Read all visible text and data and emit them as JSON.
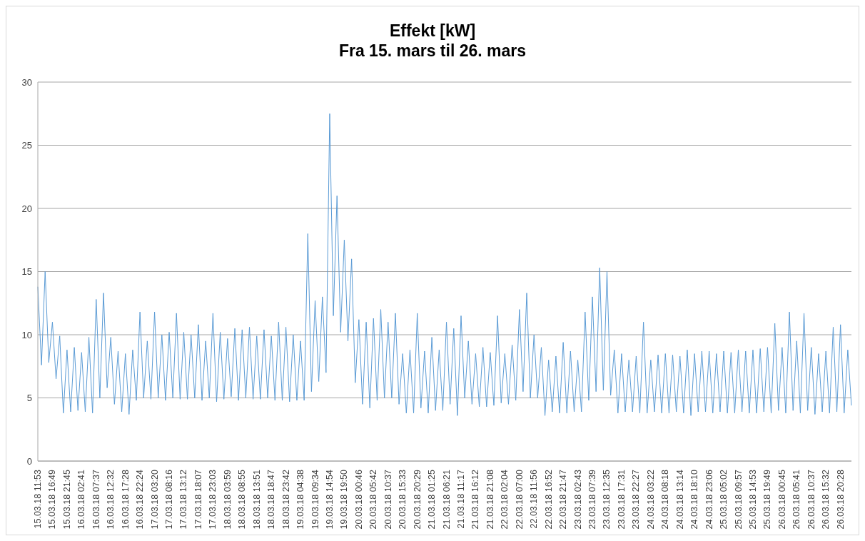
{
  "chart_data": {
    "type": "line",
    "title": "Effekt [kW]",
    "subtitle": "Fra 15. mars til 26. mars",
    "categories": [
      "15.03.18 11:53",
      null,
      null,
      null,
      "15.03.18 16:49",
      null,
      null,
      null,
      "15.03.18 21:45",
      null,
      null,
      null,
      "16.03.18 02:41",
      null,
      null,
      null,
      "16.03.18 07:37",
      null,
      null,
      null,
      "16.03.18 12:32",
      null,
      null,
      null,
      "16.03.18 17:28",
      null,
      null,
      null,
      "16.03.18 22:24",
      null,
      null,
      null,
      "17.03.18 03:20",
      null,
      null,
      null,
      "17.03.18 08:16",
      null,
      null,
      null,
      "17.03.18 13:12",
      null,
      null,
      null,
      "17.03.18 18:07",
      null,
      null,
      null,
      "17.03.18 23:03",
      null,
      null,
      null,
      "18.03.18 03:59",
      null,
      null,
      null,
      "18.03.18 08:55",
      null,
      null,
      null,
      "18.03.18 13:51",
      null,
      null,
      null,
      "18.03.18 18:47",
      null,
      null,
      null,
      "18.03.18 23:42",
      null,
      null,
      null,
      "19.03.18 04:38",
      null,
      null,
      null,
      "19.03.18 09:34",
      null,
      null,
      null,
      "19.03.18 14:54",
      null,
      null,
      null,
      "19.03.18 19:50",
      null,
      null,
      null,
      "20.03.18 00:46",
      null,
      null,
      null,
      "20.03.18 05:42",
      null,
      null,
      null,
      "20.03.18 10:37",
      null,
      null,
      null,
      "20.03.18 15:33",
      null,
      null,
      null,
      "20.03.18 20:29",
      null,
      null,
      null,
      "21.03.18 01:25",
      null,
      null,
      null,
      "21.03.18 06:21",
      null,
      null,
      null,
      "21.03.18 11:17",
      null,
      null,
      null,
      "21.03.18 16:12",
      null,
      null,
      null,
      "21.03.18 21:08",
      null,
      null,
      null,
      "22.03.18 02:04",
      null,
      null,
      null,
      "22.03.18 07:00",
      null,
      null,
      null,
      "22.03.18 11:56",
      null,
      null,
      null,
      "22.03.18 16:52",
      null,
      null,
      null,
      "22.03.18 21:47",
      null,
      null,
      null,
      "23.03.18 02:43",
      null,
      null,
      null,
      "23.03.18 07:39",
      null,
      null,
      null,
      "23.03.18 12:35",
      null,
      null,
      null,
      "23.03.18 17:31",
      null,
      null,
      null,
      "23.03.18 22:27",
      null,
      null,
      null,
      "24.03.18 03:22",
      null,
      null,
      null,
      "24.03.18 08:18",
      null,
      null,
      null,
      "24.03.18 13:14",
      null,
      null,
      null,
      "24.03.18 18:10",
      null,
      null,
      null,
      "24.03.18 23:06",
      null,
      null,
      null,
      "25.03.18 05:02",
      null,
      null,
      null,
      "25.03.18 09:57",
      null,
      null,
      null,
      "25.03.18 14:53",
      null,
      null,
      null,
      "25.03.18 19:49",
      null,
      null,
      null,
      "26.03.18 00:45",
      null,
      null,
      null,
      "26.03.18 05:41",
      null,
      null,
      null,
      "26.03.18 10:37",
      null,
      null,
      null,
      "26.03.18 15:32",
      null,
      null,
      null,
      "26.03.18 20:28",
      null,
      null,
      null
    ],
    "series": [
      {
        "color": "#5b9bd5",
        "values": [
          13.8,
          7.6,
          15.0,
          7.8,
          11.0,
          6.5,
          9.9,
          3.8,
          8.8,
          3.9,
          9.0,
          4.0,
          8.6,
          3.9,
          9.8,
          3.8,
          12.8,
          5.0,
          13.3,
          5.8,
          9.8,
          4.5,
          8.7,
          3.9,
          8.5,
          3.7,
          8.8,
          4.8,
          11.8,
          5.0,
          9.5,
          4.9,
          11.8,
          5.0,
          10.0,
          4.8,
          10.2,
          5.0,
          11.7,
          4.9,
          10.2,
          4.9,
          10.0,
          5.0,
          10.8,
          4.8,
          9.5,
          5.0,
          11.7,
          4.7,
          10.2,
          4.9,
          9.7,
          5.1,
          10.5,
          4.8,
          10.4,
          5.0,
          10.6,
          4.9,
          9.9,
          4.9,
          10.4,
          5.0,
          9.9,
          4.8,
          11.0,
          4.8,
          10.6,
          4.7,
          10.0,
          4.8,
          9.5,
          4.8,
          18.0,
          5.5,
          12.7,
          6.3,
          13.0,
          7.0,
          27.5,
          11.5,
          21.0,
          10.2,
          17.5,
          9.5,
          16.0,
          6.2,
          11.2,
          4.5,
          11.0,
          4.2,
          11.3,
          4.8,
          12.0,
          5.0,
          11.0,
          5.0,
          11.7,
          4.5,
          8.5,
          3.8,
          8.8,
          3.8,
          11.7,
          4.2,
          8.7,
          3.8,
          9.8,
          4.0,
          8.8,
          4.0,
          11.0,
          4.5,
          10.5,
          3.6,
          11.5,
          5.0,
          9.5,
          4.5,
          8.5,
          4.3,
          9.0,
          4.3,
          8.6,
          4.4,
          11.5,
          4.6,
          8.5,
          4.5,
          9.2,
          4.8,
          12.0,
          5.5,
          13.3,
          5.0,
          10.0,
          5.0,
          9.0,
          3.6,
          8.0,
          3.9,
          8.3,
          3.8,
          9.4,
          3.8,
          8.7,
          3.9,
          8.0,
          3.9,
          11.8,
          4.8,
          13.0,
          5.5,
          15.3,
          5.6,
          15.0,
          5.2,
          8.8,
          3.8,
          8.5,
          3.9,
          8.0,
          3.9,
          8.3,
          3.8,
          11.0,
          3.8,
          8.0,
          3.9,
          8.4,
          3.8,
          8.5,
          3.8,
          8.4,
          3.9,
          8.3,
          3.8,
          8.8,
          3.6,
          8.5,
          3.9,
          8.7,
          3.9,
          8.7,
          3.8,
          8.5,
          3.9,
          8.7,
          3.8,
          8.6,
          3.8,
          8.8,
          3.9,
          8.7,
          3.8,
          8.8,
          3.8,
          8.9,
          3.9,
          9.0,
          3.8,
          10.9,
          4.0,
          9.0,
          3.8,
          11.8,
          4.0,
          9.5,
          3.8,
          11.7,
          4.0,
          9.0,
          3.7,
          8.5,
          3.9,
          8.7,
          3.8,
          10.6,
          3.9,
          10.8,
          3.8,
          8.8,
          4.4
        ]
      }
    ],
    "ylim": [
      0,
      30
    ],
    "yticks": [
      0,
      5,
      10,
      15,
      20,
      25,
      30
    ],
    "grid": "y"
  }
}
